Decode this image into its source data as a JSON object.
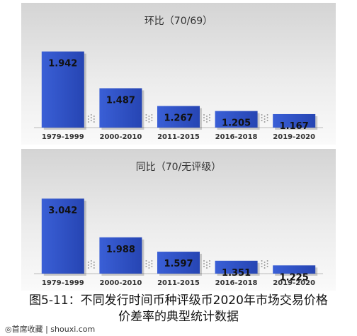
{
  "chart_data": [
    {
      "type": "bar",
      "title": "环比（70/69）",
      "categories": [
        "1979-1999",
        "2000-2010",
        "2011-2015",
        "2016-2018",
        "2019-2020"
      ],
      "values": [
        1.942,
        1.487,
        1.267,
        1.205,
        1.167
      ],
      "value_labels": [
        "1.942",
        "1.487",
        "1.267",
        "1.205",
        "1.167"
      ],
      "xlabel": "",
      "ylabel": "",
      "ylim": [
        1.0,
        2.0
      ],
      "grid": false,
      "bar_color": "#2f52c6"
    },
    {
      "type": "bar",
      "title": "同比（70/无评级）",
      "categories": [
        "1979-1999",
        "2000-2010",
        "2011-2015",
        "2016-2018",
        "2019-2020"
      ],
      "values": [
        3.042,
        1.988,
        1.597,
        1.351,
        1.225
      ],
      "value_labels": [
        "3.042",
        "1.988",
        "1.597",
        "1.351",
        "1.225"
      ],
      "xlabel": "",
      "ylabel": "",
      "ylim": [
        1.0,
        3.2
      ],
      "grid": false,
      "bar_color": "#2f52c6"
    }
  ],
  "caption": {
    "line1": "图5-11：不同发行时间币种评级币2020年市场交易价格",
    "line2": "价差率的典型统计数据"
  },
  "watermark": "◎首席收藏 | shouxi.com"
}
